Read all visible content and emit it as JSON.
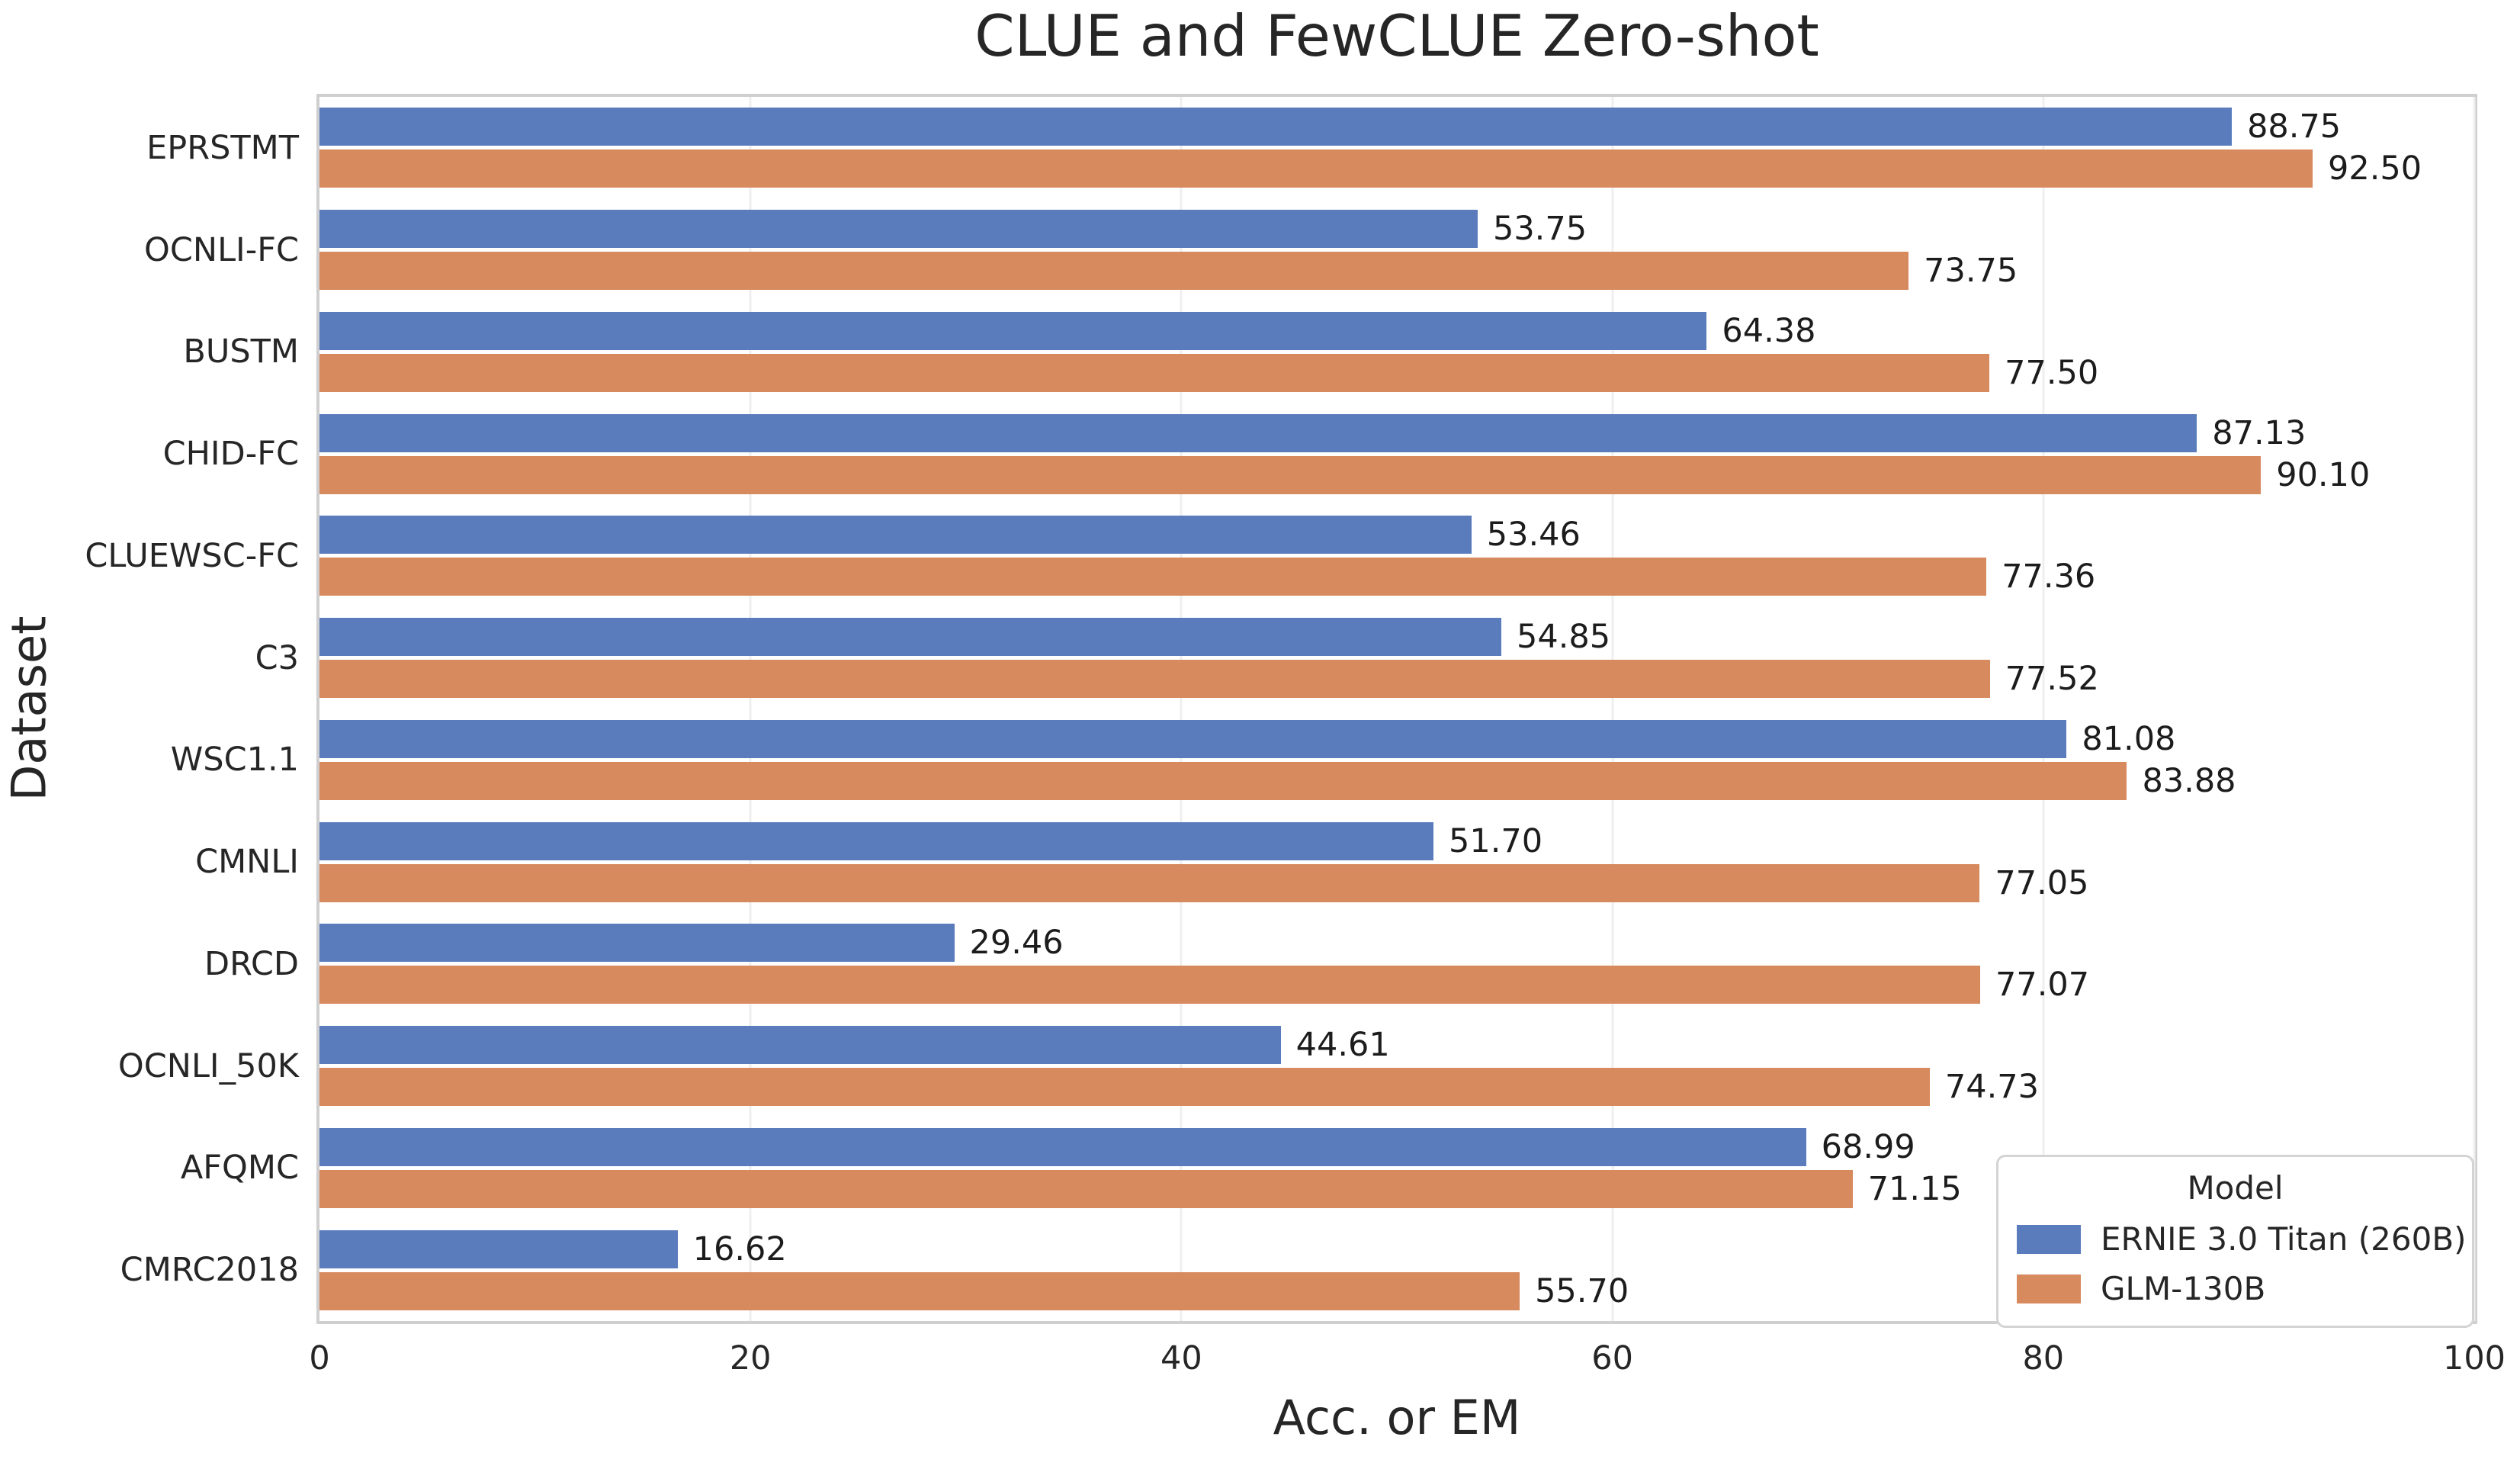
{
  "chart_data": {
    "type": "bar",
    "orientation": "horizontal",
    "title": "CLUE and FewCLUE Zero-shot",
    "xlabel": "Acc. or EM",
    "ylabel": "Dataset",
    "xlim": [
      0,
      100
    ],
    "xticks": [
      0,
      20,
      40,
      60,
      80,
      100
    ],
    "grid": true,
    "legend": {
      "title": "Model",
      "position": "lower right"
    },
    "categories": [
      "EPRSTMT",
      "OCNLI-FC",
      "BUSTM",
      "CHID-FC",
      "CLUEWSC-FC",
      "C3",
      "WSC1.1",
      "CMNLI",
      "DRCD",
      "OCNLI_50K",
      "AFQMC",
      "CMRC2018"
    ],
    "series": [
      {
        "name": "ERNIE 3.0 Titan (260B)",
        "color": "#5a7cbd",
        "values": [
          88.75,
          53.75,
          64.38,
          87.13,
          53.46,
          54.85,
          81.08,
          51.7,
          29.46,
          44.61,
          68.99,
          16.62
        ]
      },
      {
        "name": "GLM-130B",
        "color": "#d78a5e",
        "values": [
          92.5,
          73.75,
          77.5,
          90.1,
          77.36,
          77.52,
          83.88,
          77.05,
          77.07,
          74.73,
          71.15,
          55.7
        ]
      }
    ]
  }
}
